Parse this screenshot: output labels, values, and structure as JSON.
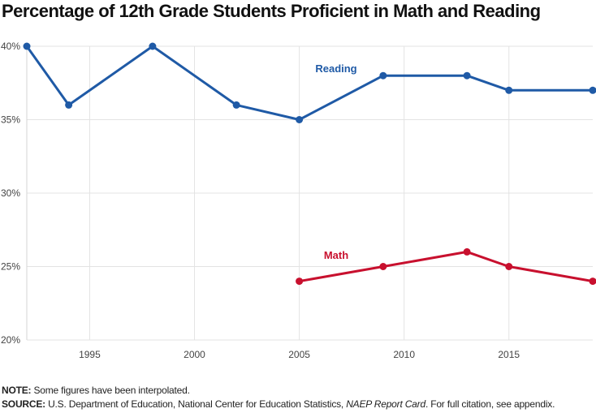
{
  "chart_data": {
    "type": "line",
    "title": "Percentage of 12th Grade Students Proficient in Math and Reading",
    "xlabel": "",
    "ylabel": "",
    "xlim": [
      1992,
      2019
    ],
    "ylim": [
      20,
      40
    ],
    "xticks": [
      1995,
      2000,
      2005,
      2010,
      2015
    ],
    "xtick_labels": [
      "1995",
      "2000",
      "2005",
      "2010",
      "2015"
    ],
    "yticks": [
      20,
      25,
      30,
      35,
      40
    ],
    "ytick_labels": [
      "20%",
      "25%",
      "30%",
      "35%",
      "40%"
    ],
    "grid": true,
    "series": [
      {
        "name": "Reading",
        "color": "#1f5aa6",
        "x": [
          1992,
          1994,
          1998,
          2002,
          2005,
          2009,
          2013,
          2015,
          2019
        ],
        "y": [
          40,
          36,
          40,
          36,
          35,
          38,
          38,
          37,
          37
        ]
      },
      {
        "name": "Math",
        "color": "#c8102e",
        "x": [
          2005,
          2009,
          2013,
          2015,
          2019
        ],
        "y": [
          24,
          25,
          26,
          25,
          24
        ]
      }
    ]
  },
  "footer": {
    "note_label": "NOTE:",
    "note_text": " Some figures have been interpolated.",
    "source_label": "SOURCE:",
    "source_text_1": " U.S. Department of Education, National Center for Education Statistics, ",
    "source_italic": "NAEP Report Card",
    "source_text_2": ". For full citation, see appendix."
  }
}
